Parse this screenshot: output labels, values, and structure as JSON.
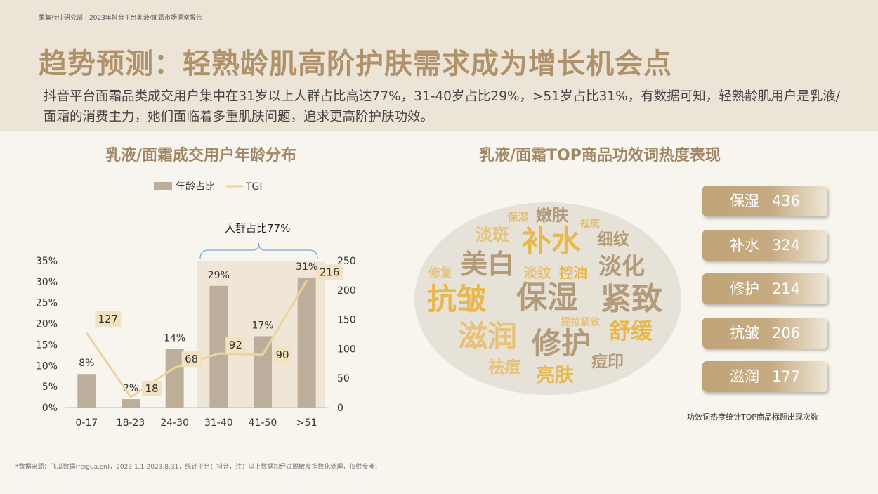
{
  "header": {
    "top_note": "果集行业研究部丨2023年抖音平台乳液/面霜市场洞察报告",
    "title": "趋势预测：轻熟龄肌高阶护肤需求成为增长机会点",
    "summary": "抖音平台面霜品类成交用户集中在31岁以上人群占比高达77%，31-40岁占比29%，>51岁占比31%，有数据可知，轻熟龄肌用户是乳液/面霜的消费主力，她们面临着多重肌肤问题，追求更高阶护肤功效。"
  },
  "left_section": {
    "title": "乳液/面霜成交用户年龄分布"
  },
  "right_section": {
    "title": "乳液/面霜TOP商品功效词热度表现",
    "cloud_words": [
      "保湿",
      "嫩肤",
      "祛斑",
      "淡斑",
      "补水",
      "细纹",
      "美白",
      "修复",
      "淡纹",
      "控油",
      "淡化",
      "抗皱",
      "保湿",
      "紧致",
      "提拉紧致",
      "滋润",
      "舒缓",
      "修护",
      "祛痘",
      "痘印",
      "亮肤"
    ],
    "tags": [
      {
        "label": "保湿",
        "value": "436"
      },
      {
        "label": "补水",
        "value": "324"
      },
      {
        "label": "修护",
        "value": "214"
      },
      {
        "label": "抗皱",
        "value": "206"
      },
      {
        "label": "滋润",
        "value": "177"
      }
    ],
    "note": "功效词热度统计TOP商品标题出现次数"
  },
  "footnote": "*数据来源：飞瓜数据(feigua.cn)，2023.1.1-2023.8.31，统计平台：抖音，注：以上数据均经过脱敏及指数化处理，仅供参考；",
  "chart_data": {
    "type": "bar",
    "title": "乳液/面霜成交用户年龄分布",
    "categories": [
      "0-17",
      "18-23",
      "24-30",
      "31-40",
      "41-50",
      ">51"
    ],
    "series": [
      {
        "name": "年龄占比",
        "type": "bar",
        "axis": "left",
        "values": [
          8,
          2,
          14,
          29,
          17,
          31
        ],
        "labels": [
          "8%",
          "2%",
          "14%",
          "29%",
          "17%",
          "31%"
        ],
        "color": "#bcae9b"
      },
      {
        "name": "TGI",
        "type": "line",
        "axis": "right",
        "values": [
          127,
          18,
          68,
          92,
          90,
          216
        ],
        "labels": [
          "127",
          "18",
          "68",
          "92",
          "90",
          "216"
        ],
        "color": "#ecd39c"
      }
    ],
    "y_left": {
      "range": [
        0,
        35
      ],
      "ticks": [
        "0%",
        "5%",
        "10%",
        "15%",
        "20%",
        "25%",
        "30%",
        "35%"
      ]
    },
    "y_right": {
      "range": [
        0,
        250
      ],
      "ticks": [
        "0",
        "50",
        "100",
        "150",
        "200",
        "250"
      ]
    },
    "annotation": {
      "text": "人群占比77%",
      "span": [
        "31-40",
        ">51"
      ]
    },
    "legend": {
      "position": "top",
      "items": [
        "年龄占比",
        "TGI"
      ]
    },
    "colors": {
      "highlight_region": "#efe6d8",
      "bracket": "#7ba2d8",
      "label_box": "#f2e2c0"
    }
  }
}
